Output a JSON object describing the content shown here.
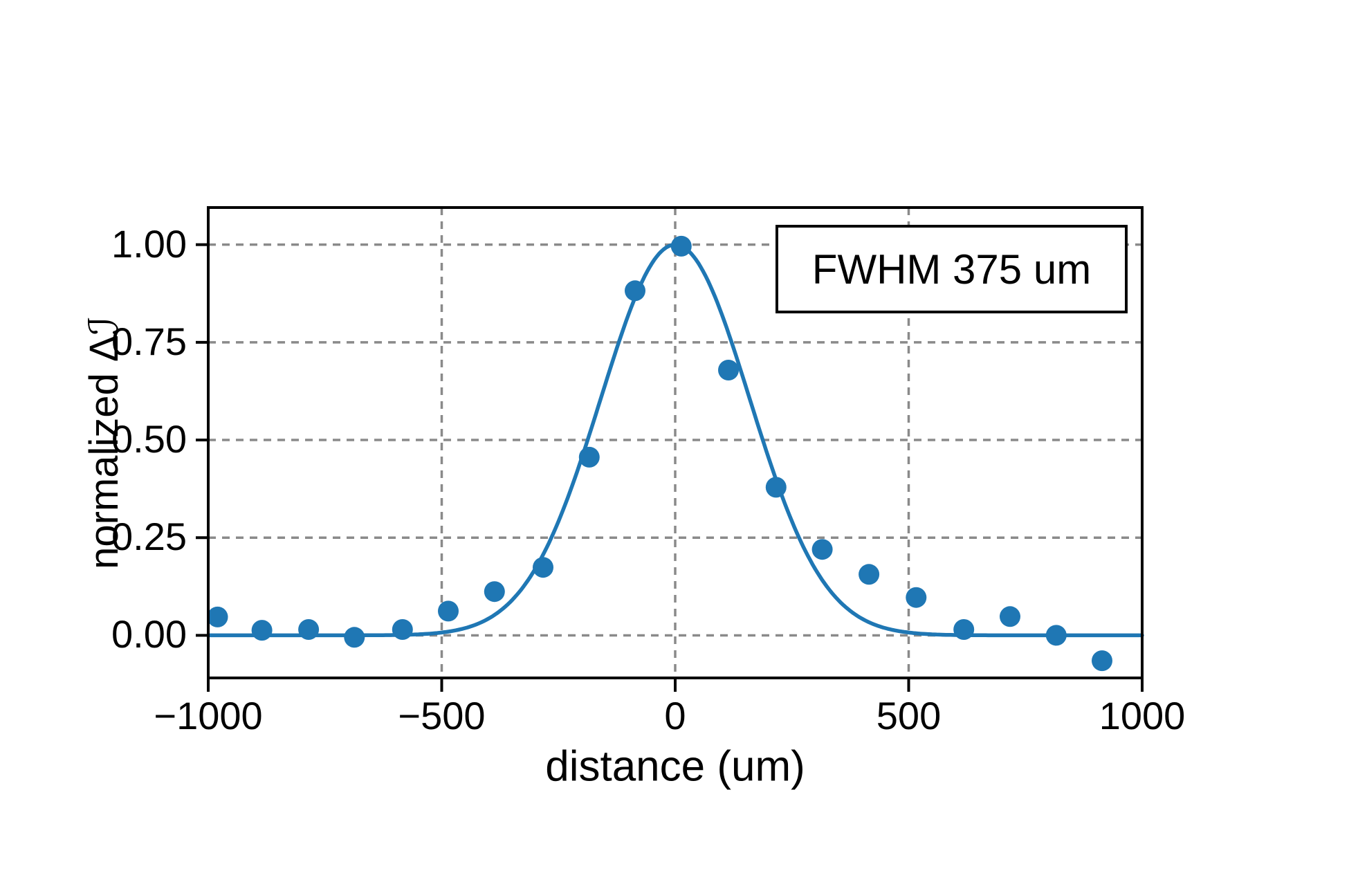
{
  "figure": {
    "background": "#ffffff"
  },
  "chart_data": {
    "type": "scatter",
    "title": "",
    "xlabel": "distance (um)",
    "ylabel": "normalized Δℐ",
    "annotation": "FWHM 375 um",
    "xlim": [
      -1000,
      1000
    ],
    "ylim": [
      -0.109,
      1.095
    ],
    "x_ticks": [
      -1000,
      -500,
      0,
      500,
      1000
    ],
    "x_tick_labels": [
      "−1000",
      "−500",
      "0",
      "500",
      "1000"
    ],
    "y_ticks": [
      0.0,
      0.25,
      0.5,
      0.75,
      1.0
    ],
    "y_tick_labels": [
      "0.00",
      "0.25",
      "0.50",
      "0.75",
      "1.00"
    ],
    "x_gridlines": [
      -500,
      0,
      500
    ],
    "y_gridlines": [
      0.0,
      0.25,
      0.5,
      0.75,
      1.0
    ],
    "grid": true,
    "legend_position": "upper right",
    "colors": {
      "accent": "#1f77b4",
      "grid": "#8a8a8a",
      "axis": "#000000"
    },
    "series": [
      {
        "name": "measured data points",
        "type": "scatter",
        "color": "#1f77b4",
        "marker_diameter_px": 30,
        "points": [
          [
            -980,
            0.047
          ],
          [
            -885,
            0.013
          ],
          [
            -785,
            0.015
          ],
          [
            -687,
            -0.005
          ],
          [
            -584,
            0.015
          ],
          [
            -486,
            0.062
          ],
          [
            -387,
            0.112
          ],
          [
            -283,
            0.174
          ],
          [
            -184,
            0.456
          ],
          [
            -86,
            0.882
          ],
          [
            13,
            0.996
          ],
          [
            114,
            0.679
          ],
          [
            216,
            0.379
          ],
          [
            315,
            0.22
          ],
          [
            415,
            0.156
          ],
          [
            516,
            0.097
          ],
          [
            618,
            0.015
          ],
          [
            717,
            0.048
          ],
          [
            816,
            0.0
          ],
          [
            914,
            -0.065
          ]
        ]
      },
      {
        "name": "gaussian fit",
        "type": "line",
        "color": "#1f77b4",
        "fit": {
          "shape": "gaussian",
          "amplitude": 1.0,
          "center": 0,
          "sigma": 159.25,
          "baseline": 0.0,
          "fwhm_um": 375
        }
      }
    ]
  }
}
